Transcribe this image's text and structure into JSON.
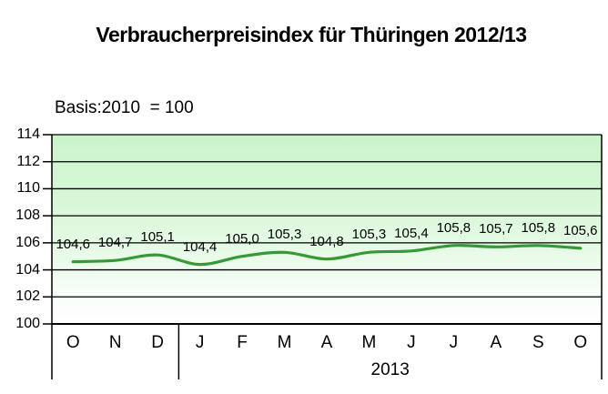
{
  "header": {
    "title": "Verbraucherpreisindex für Thüringen 2012/13",
    "basis_note": "Basis:2010  = 100"
  },
  "chart_data": {
    "type": "line",
    "title": "Verbraucherpreisindex für Thüringen 2012/13",
    "subtitle": "Basis:2010 = 100",
    "categories": [
      "O",
      "N",
      "D",
      "J",
      "F",
      "M",
      "A",
      "M",
      "J",
      "J",
      "A",
      "S",
      "O"
    ],
    "values": [
      104.6,
      104.7,
      105.1,
      104.4,
      105.0,
      105.3,
      104.8,
      105.3,
      105.4,
      105.8,
      105.7,
      105.8,
      105.6
    ],
    "data_labels": [
      "104,6",
      "104,7",
      "105,1",
      "104,4",
      "105,0",
      "105,3",
      "104,8",
      "105,3",
      "105,4",
      "105,8",
      "105,7",
      "105,8",
      "105,6"
    ],
    "ylim": [
      100,
      114
    ],
    "yticks": [
      100,
      102,
      104,
      106,
      108,
      110,
      112,
      114
    ],
    "x_groups": [
      {
        "label": "",
        "span": 3
      },
      {
        "label": "2013",
        "span": 10
      }
    ],
    "grid": true,
    "smooth": true,
    "legend_position": "none",
    "line_color": "#359935",
    "gridline_color": "#000000",
    "axis_color": "#000000",
    "plot_bg_top": "#cbf4cb",
    "plot_bg_bottom": "#ffffff"
  }
}
